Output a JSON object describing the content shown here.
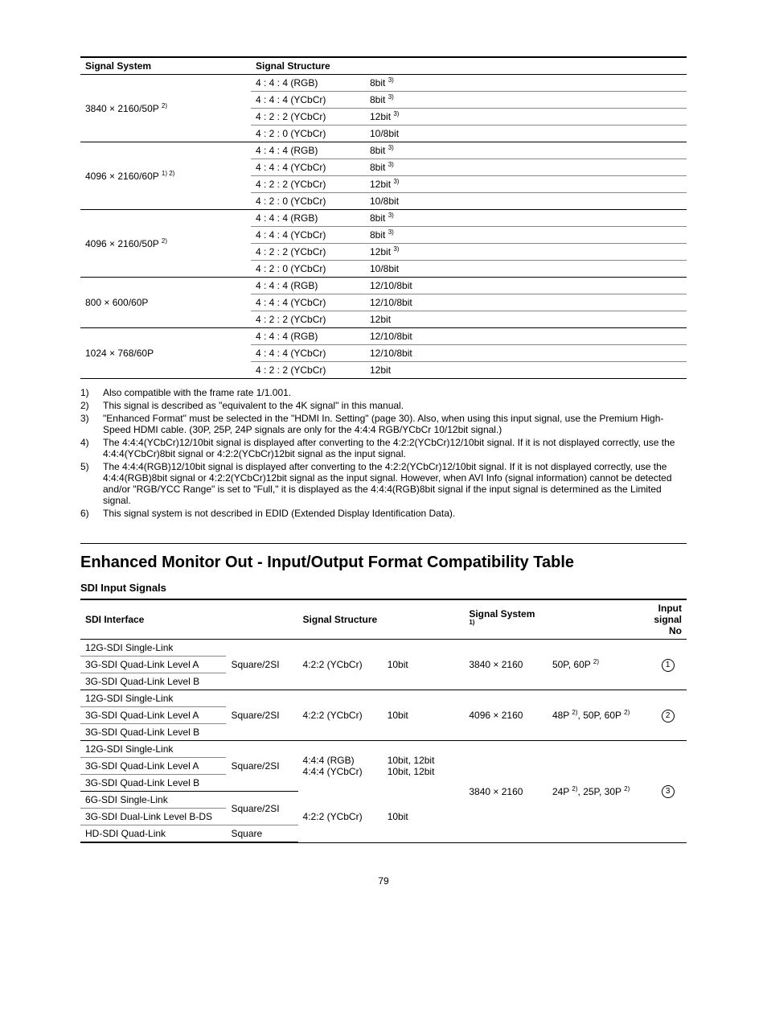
{
  "table1": {
    "headers": [
      "Signal System",
      "Signal Structure",
      ""
    ],
    "groups": [
      {
        "system": "3840 × 2160/50P",
        "systemSup": "2)",
        "rows": [
          [
            "4 : 4 : 4 (RGB)",
            "8bit",
            "3)"
          ],
          [
            "4 : 4 : 4 (YCbCr)",
            "8bit",
            "3)"
          ],
          [
            "4 : 2 : 2 (YCbCr)",
            "12bit",
            "3)"
          ],
          [
            "4 : 2 : 0 (YCbCr)",
            "10/8bit",
            ""
          ]
        ]
      },
      {
        "system": "4096 × 2160/60P",
        "systemSup": "1) 2)",
        "rows": [
          [
            "4 : 4 : 4 (RGB)",
            "8bit",
            "3)"
          ],
          [
            "4 : 4 : 4 (YCbCr)",
            "8bit",
            "3)"
          ],
          [
            "4 : 2 : 2 (YCbCr)",
            "12bit",
            "3)"
          ],
          [
            "4 : 2 : 0 (YCbCr)",
            "10/8bit",
            ""
          ]
        ]
      },
      {
        "system": "4096 × 2160/50P",
        "systemSup": "2)",
        "rows": [
          [
            "4 : 4 : 4 (RGB)",
            "8bit",
            "3)"
          ],
          [
            "4 : 4 : 4 (YCbCr)",
            "8bit",
            "3)"
          ],
          [
            "4 : 2 : 2 (YCbCr)",
            "12bit",
            "3)"
          ],
          [
            "4 : 2 : 0 (YCbCr)",
            "10/8bit",
            ""
          ]
        ]
      },
      {
        "system": "800 × 600/60P",
        "systemSup": "",
        "rows": [
          [
            "4 : 4 : 4 (RGB)",
            "12/10/8bit",
            ""
          ],
          [
            "4 : 4 : 4 (YCbCr)",
            "12/10/8bit",
            ""
          ],
          [
            "4 : 2 : 2 (YCbCr)",
            "12bit",
            ""
          ]
        ]
      },
      {
        "system": "1024 × 768/60P",
        "systemSup": "",
        "rows": [
          [
            "4 : 4 : 4 (RGB)",
            "12/10/8bit",
            ""
          ],
          [
            "4 : 4 : 4 (YCbCr)",
            "12/10/8bit",
            ""
          ],
          [
            "4 : 2 : 2 (YCbCr)",
            "12bit",
            ""
          ]
        ]
      }
    ]
  },
  "notes": [
    {
      "n": "1)",
      "t": "Also compatible with the frame rate 1/1.001."
    },
    {
      "n": "2)",
      "t": "This signal is described as \"equivalent to the 4K signal\" in this manual."
    },
    {
      "n": "3)",
      "t": "\"Enhanced Format\" must be selected in the \"HDMI In. Setting\" (page 30). Also, when using this input signal, use the Premium High-Speed HDMI cable. (30P, 25P, 24P signals are only for the 4:4:4 RGB/YCbCr 10/12bit signal.)"
    },
    {
      "n": "4)",
      "t": "The 4:4:4(YCbCr)12/10bit signal is displayed after converting to the 4:2:2(YCbCr)12/10bit signal. If it is not displayed correctly, use the 4:4:4(YCbCr)8bit signal or 4:2:2(YCbCr)12bit signal as the input signal."
    },
    {
      "n": "5)",
      "t": "The 4:4:4(RGB)12/10bit signal is displayed after converting to the 4:2:2(YCbCr)12/10bit signal. If it is not displayed correctly, use the 4:4:4(RGB)8bit signal or 4:2:2(YCbCr)12bit signal as the input signal. However, when AVI Info (signal information) cannot be detected and/or \"RGB/YCC Range\" is set to \"Full,\" it is displayed as the 4:4:4(RGB)8bit signal if the input signal is determined as the Limited signal."
    },
    {
      "n": "6)",
      "t": "This signal system is not described in EDID (Extended Display Identification Data)."
    }
  ],
  "sectionTitle": "Enhanced Monitor Out - Input/Output Format Compatibility Table",
  "subTitle": "SDI Input Signals",
  "table2": {
    "headers": {
      "h1": "SDI Interface",
      "h2": "Signal Structure",
      "h3": "Signal System",
      "h3sup": "1)",
      "h4": "Input signal No"
    },
    "block1": {
      "ifaces": [
        "12G-SDI Single-Link",
        "3G-SDI Quad-Link Level A",
        "3G-SDI Quad-Link Level B"
      ],
      "layout": "Square/2SI",
      "struct": "4:2:2 (YCbCr)",
      "bits": "10bit",
      "res": "3840 × 2160",
      "rates": "50P, 60P",
      "ratesSup": "2)",
      "num": "1"
    },
    "block2": {
      "ifaces": [
        "12G-SDI Single-Link",
        "3G-SDI Quad-Link Level A",
        "3G-SDI Quad-Link Level B"
      ],
      "layout": "Square/2SI",
      "struct": "4:2:2 (YCbCr)",
      "bits": "10bit",
      "res": "4096 × 2160",
      "rates_a": "48P",
      "rates_a_sup": "2)",
      "rates_b": ", 50P, 60P",
      "rates_b_sup": "2)",
      "num": "2"
    },
    "block3": {
      "topIfaces": [
        "12G-SDI Single-Link",
        "3G-SDI Quad-Link Level A",
        "3G-SDI Quad-Link Level B"
      ],
      "topLayout": "Square/2SI",
      "topStruct1": "4:4:4 (RGB)",
      "topStruct2": "4:4:4 (YCbCr)",
      "topBits1": "10bit, 12bit",
      "topBits2": "10bit, 12bit",
      "res": "3840 × 2160",
      "rates_a": "24P",
      "rates_a_sup": "2)",
      "rates_b": ", 25P, 30P",
      "rates_b_sup": "2)",
      "num": "3",
      "botIfaces": [
        "6G-SDI Single-Link",
        "3G-SDI Dual-Link Level B-DS",
        "HD-SDI Quad-Link"
      ],
      "botLayout1": "Square/2SI",
      "botLayout2": "Square",
      "botStruct": "4:2:2 (YCbCr)",
      "botBits": "10bit"
    }
  },
  "pageNumber": "79"
}
